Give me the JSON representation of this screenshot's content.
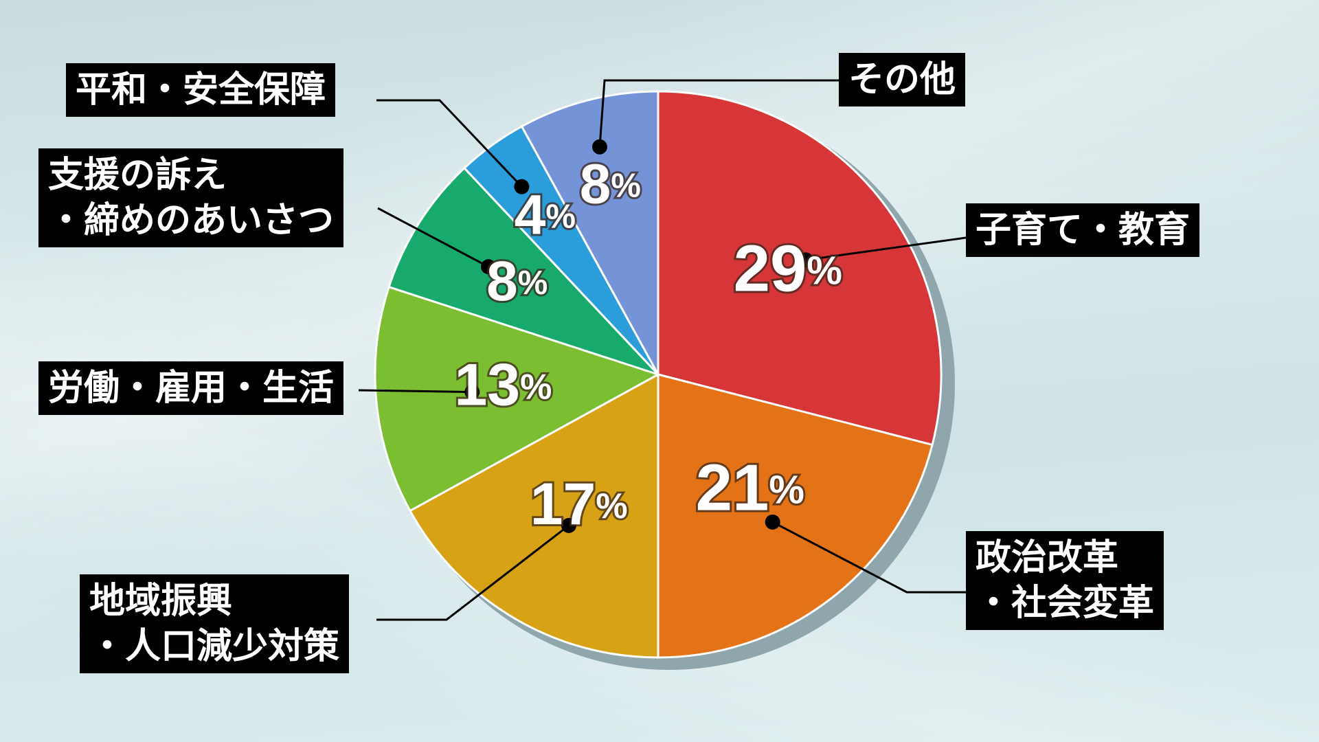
{
  "chart_data": {
    "type": "pie",
    "start": "12 o'clock, clockwise",
    "slices": [
      {
        "label": "子育て・教育",
        "lines": [
          "子育て・教育"
        ],
        "value": 29,
        "value_label": "29",
        "color": "#d63638"
      },
      {
        "label": "政治改革・社会変革",
        "lines": [
          "政治改革",
          "・社会変革"
        ],
        "value": 21,
        "value_label": "21",
        "color": "#e47318"
      },
      {
        "label": "地域振興・人口減少対策",
        "lines": [
          "地域振興",
          "・人口減少対策"
        ],
        "value": 17,
        "value_label": "17",
        "color": "#d7a215"
      },
      {
        "label": "労働・雇用・生活",
        "lines": [
          "労働・雇用・生活"
        ],
        "value": 13,
        "value_label": "13",
        "color": "#7cbe32"
      },
      {
        "label": "支援の訴え・締めのあいさつ",
        "lines": [
          "支援の訴え",
          "・締めのあいさつ"
        ],
        "value": 8,
        "value_label": "8",
        "color": "#18aa6c"
      },
      {
        "label": "平和・安全保障",
        "lines": [
          "平和・安全保障"
        ],
        "value": 4,
        "value_label": "4",
        "color": "#2c9ddb"
      },
      {
        "label": "その他",
        "lines": [
          "その他"
        ],
        "value": 8,
        "value_label": "8",
        "color": "#7594d7"
      }
    ],
    "percent_sign": "%"
  }
}
